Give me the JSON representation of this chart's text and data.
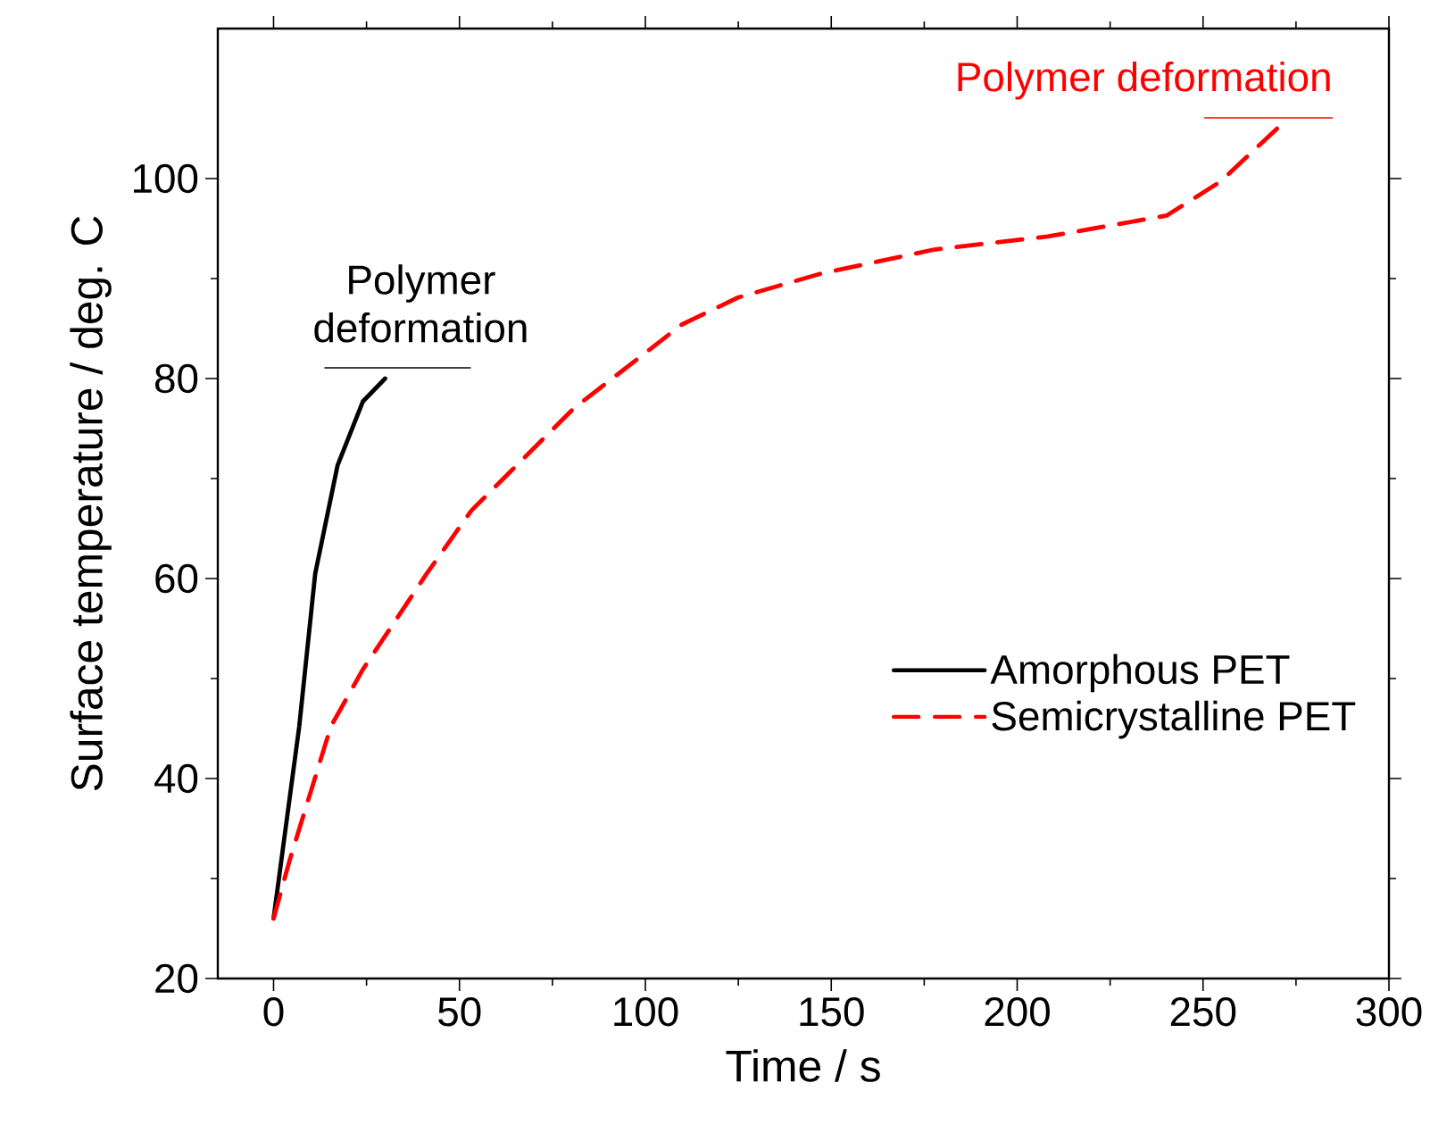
{
  "chart_data": {
    "type": "line",
    "xlabel": "Time / s",
    "ylabel": "Surface temperature / deg. C",
    "xlim": [
      -15,
      300
    ],
    "ylim": [
      20,
      115
    ],
    "xticks": [
      0,
      50,
      100,
      150,
      200,
      250,
      300
    ],
    "yticks": [
      20,
      40,
      60,
      80,
      100
    ],
    "legend": "right",
    "grid": false,
    "series": [
      {
        "name": "Amorphous PET",
        "color": "#000000",
        "line_style": "solid",
        "x": [
          0,
          6.9,
          11.2,
          17.2,
          24,
          30
        ],
        "values": [
          26,
          45.2,
          60.5,
          71.3,
          77.7,
          80
        ]
      },
      {
        "name": "Semicrystalline PET",
        "color": "#ff0000",
        "line_style": "dashed",
        "x": [
          0,
          4.3,
          15.4,
          24,
          41.2,
          53.2,
          80.7,
          109.8,
          124.9,
          147.3,
          177.7,
          208.2,
          240.2,
          254.7,
          269.9
        ],
        "values": [
          26,
          31.8,
          45.2,
          50.9,
          60.5,
          66.8,
          77,
          85.4,
          88.1,
          90.5,
          92.9,
          94.2,
          96.3,
          99.7,
          105
        ]
      }
    ],
    "annotations": [
      {
        "text": "Polymer deformation",
        "x": 30,
        "y": 80
      },
      {
        "text": "Polymer deformation",
        "x": 270,
        "y": 105
      }
    ]
  }
}
